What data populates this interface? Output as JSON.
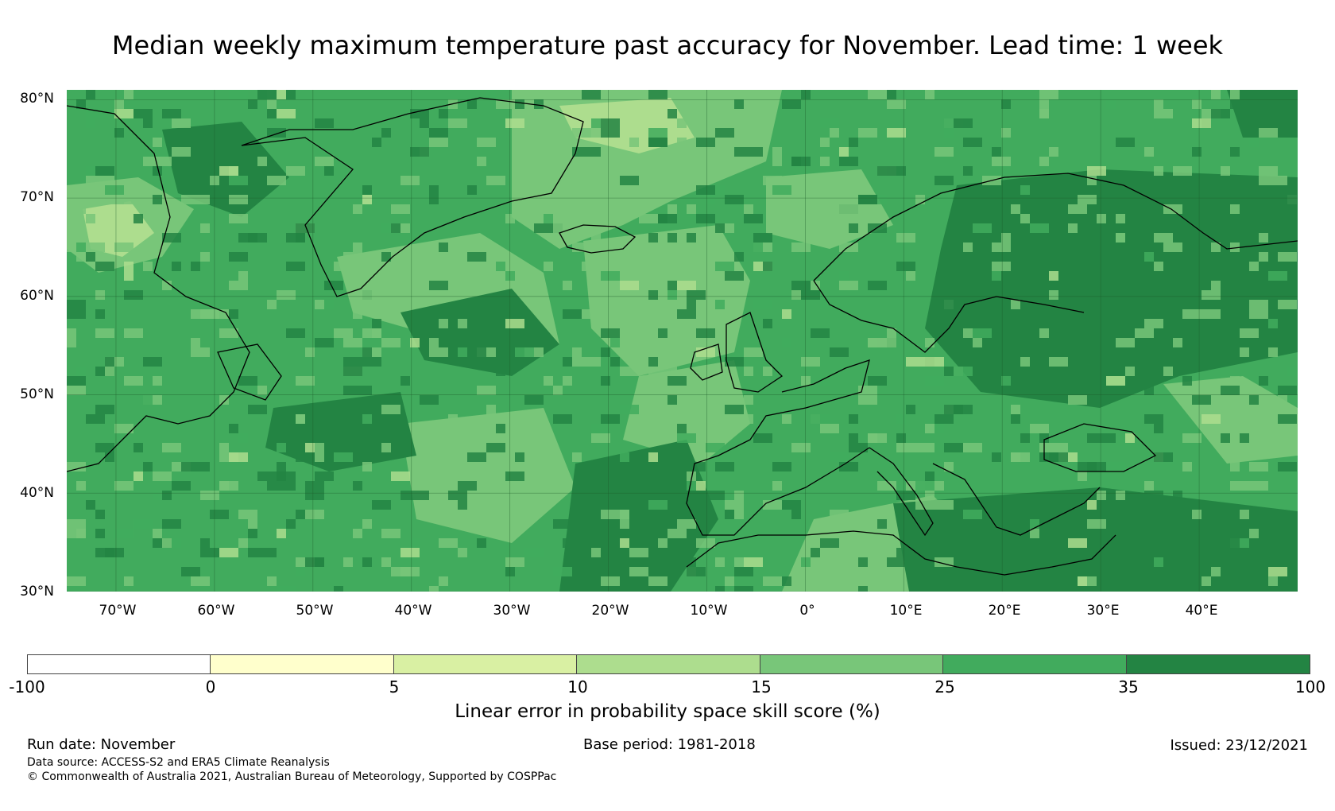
{
  "title": "Median weekly maximum temperature past accuracy for November. Lead time: 1 week",
  "map": {
    "lat_labels": [
      "80°N",
      "70°N",
      "60°N",
      "50°N",
      "40°N",
      "30°N"
    ],
    "lon_labels": [
      "70°W",
      "60°W",
      "50°W",
      "40°W",
      "30°W",
      "20°W",
      "10°W",
      "0°",
      "10°E",
      "20°E",
      "30°E",
      "40°E"
    ],
    "extent": {
      "lon_min": -75,
      "lon_max": 50,
      "lat_min": 30,
      "lat_max": 81
    },
    "dominant_color": "#41ab5d"
  },
  "colorbar": {
    "label": "Linear error in probability space skill score (%)",
    "ticks": [
      "-100",
      "0",
      "5",
      "10",
      "15",
      "25",
      "35",
      "100"
    ],
    "bins": [
      {
        "from": -100,
        "to": 0,
        "color": "#ffffff"
      },
      {
        "from": 0,
        "to": 5,
        "color": "#ffffcc"
      },
      {
        "from": 5,
        "to": 10,
        "color": "#d9f0a3"
      },
      {
        "from": 10,
        "to": 15,
        "color": "#addd8e"
      },
      {
        "from": 15,
        "to": 25,
        "color": "#78c679"
      },
      {
        "from": 25,
        "to": 35,
        "color": "#41ab5d"
      },
      {
        "from": 35,
        "to": 100,
        "color": "#238443"
      }
    ]
  },
  "footer": {
    "run_date": "Run date: November",
    "base_period": "Base period: 1981-2018",
    "issued": "Issued: 23/12/2021",
    "data_source": "Data source: ACCESS-S2 and ERA5 Climate Reanalysis",
    "copyright": "© Commonwealth of Australia 2021, Australian Bureau of Meteorology, Supported by COSPPac"
  }
}
